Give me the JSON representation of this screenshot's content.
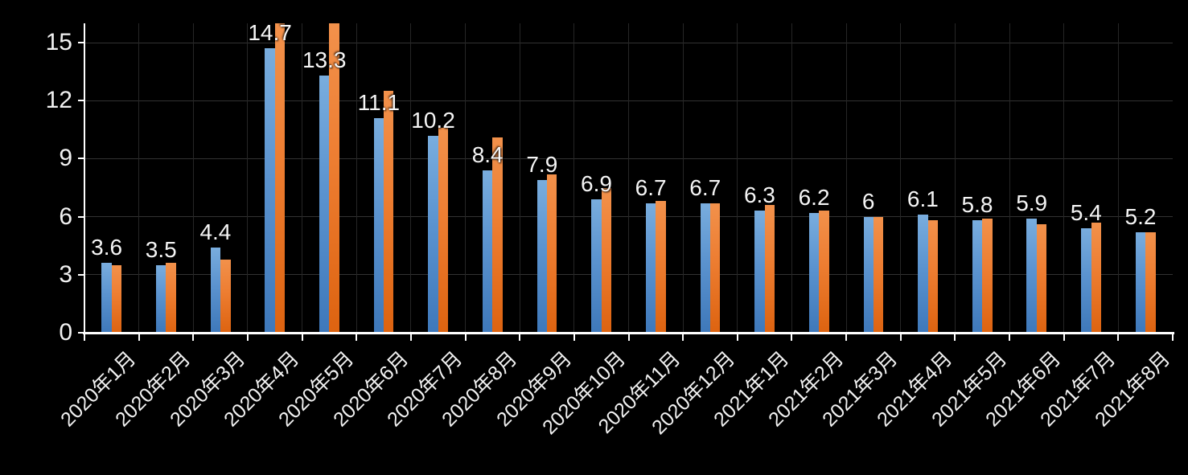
{
  "chart_data": {
    "type": "bar",
    "title": "",
    "categories": [
      "2020年1月",
      "2020年2月",
      "2020年3月",
      "2020年4月",
      "2020年5月",
      "2020年6月",
      "2020年7月",
      "2020年8月",
      "2020年9月",
      "2020年10月",
      "2020年11月",
      "2020年12月",
      "2021年1月",
      "2021年2月",
      "2021年3月",
      "2021年4月",
      "2021年5月",
      "2021年6月",
      "2021年7月",
      "2021年8月"
    ],
    "series": [
      {
        "id": "blue-series",
        "color_top": "#79adde",
        "color_bottom": "#3e78ba",
        "values": [
          3.6,
          3.5,
          4.4,
          14.7,
          13.3,
          11.1,
          10.2,
          8.4,
          7.9,
          6.9,
          6.7,
          6.7,
          6.3,
          6.2,
          6,
          6.1,
          5.8,
          5.9,
          5.4,
          5.2
        ],
        "labels": [
          "3.6",
          "3.5",
          "4.4",
          "14.7",
          "13.3",
          "11.1",
          "10.2",
          "8.4",
          "7.9",
          "6.9",
          "6.7",
          "6.7",
          "6.3",
          "6.2",
          "6",
          "6.1",
          "5.8",
          "5.9",
          "5.4",
          "5.2"
        ]
      },
      {
        "id": "orange-series",
        "color_top": "#f2914b",
        "color_bottom": "#dd6310",
        "values_estimated_from_pixels": true,
        "values": [
          3.5,
          3.6,
          3.8,
          16,
          16,
          12.5,
          10.6,
          10.1,
          8.2,
          7.5,
          6.8,
          6.7,
          6.6,
          6.3,
          6.0,
          5.8,
          5.9,
          5.6,
          5.7,
          5.2
        ],
        "clipped_at_axis_max": [
          false,
          false,
          false,
          true,
          true,
          false,
          false,
          false,
          false,
          false,
          false,
          false,
          false,
          false,
          false,
          false,
          false,
          false,
          false,
          false
        ]
      }
    ],
    "y_axis": {
      "min": 0,
      "max": 16,
      "tick_values": [
        0,
        3,
        6,
        9,
        12,
        15
      ],
      "tick_labels": [
        "0",
        "3",
        "6",
        "9",
        "12",
        "15"
      ]
    },
    "x_axis": {
      "label_rotation_deg": 45
    },
    "legend": {
      "visible": false
    },
    "grid": {
      "horizontal": true,
      "vertical": true
    },
    "colors": {
      "background": "#000000",
      "axis": "#ffffff",
      "gridline_horizontal": "#323232",
      "gridline_vertical": "#262626",
      "text": "#f2f2f2"
    }
  }
}
